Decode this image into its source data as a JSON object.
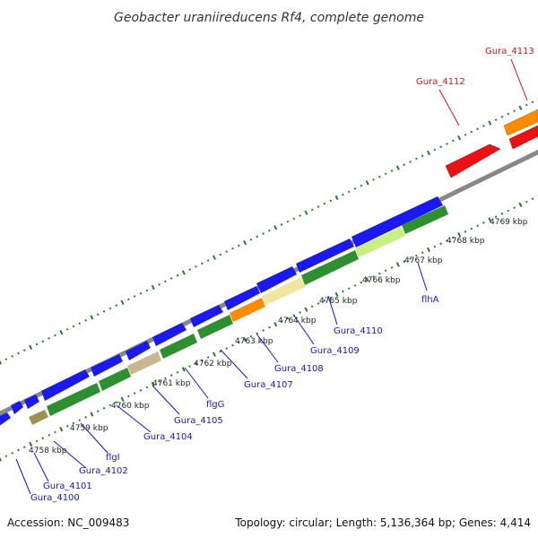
{
  "title": "Geobacter uraniireducens Rf4, complete genome",
  "footer": {
    "accession": "Accession: NC_009483",
    "summary": "Topology: circular; Length: 5,136,364 bp; Genes: 4,414"
  },
  "colors": {
    "backbone": "#888888",
    "cds_forward": "#1a1aee",
    "cds_reverse": "#ee1111",
    "orange": "#ff8c00",
    "green": "#2d8f2d",
    "label_blue": "#1515cc",
    "label_red": "#e01010",
    "tick_green": "#2b7a2b"
  },
  "kbp_labels": [
    "4758 kbp",
    "4759 kbp",
    "4760 kbp",
    "4761 kbp",
    "4762 kbp",
    "4763 kbp",
    "4764 kbp",
    "4765 kbp",
    "4766 kbp",
    "4767 kbp",
    "4768 kbp",
    "4769 kbp"
  ],
  "gene_labels_blue": [
    "Gura_4100",
    "Gura_4101",
    "Gura_4102",
    "flgI",
    "Gura_4104",
    "Gura_4105",
    "flgG",
    "Gura_4107",
    "Gura_4108",
    "Gura_4109",
    "Gura_4110",
    "flhA"
  ],
  "gene_labels_red": [
    "Gura_4112",
    "Gura_4113"
  ]
}
